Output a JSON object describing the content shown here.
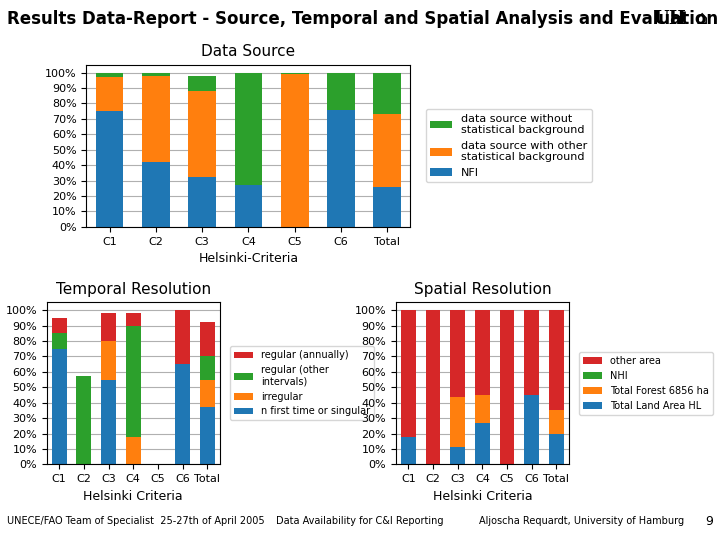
{
  "title": "Results Data-Report - Source, Temporal and Spatial Analysis and Evaluation",
  "annotations": [
    "UH",
    "⌂",
    "UNECE/FAO Team of Specialist  25-27th of April 2005",
    "Data Availability for C&I Reporting",
    "Aljoscha Requardt, University of Hamburg",
    "9"
  ],
  "chart_data": [
    {
      "type": "bar",
      "stacked": true,
      "title": "Data Source",
      "xlabel": "Helsinki-Criteria",
      "categories": [
        "C1",
        "C2",
        "C3",
        "C4",
        "C5",
        "C6",
        "Total"
      ],
      "series": [
        {
          "name": "NFI",
          "values": [
            75,
            42,
            32,
            27,
            0,
            76,
            26
          ]
        },
        {
          "name": "data source with other\nstatistical background",
          "values": [
            22,
            56,
            56,
            0,
            99,
            0,
            47
          ]
        },
        {
          "name": "data source without\nstatistical background",
          "values": [
            3,
            2,
            10,
            73,
            1,
            24,
            27
          ]
        }
      ],
      "ylim": [
        0,
        105
      ],
      "yticks": [
        {
          "value": 0,
          "label": "0%"
        },
        {
          "value": 10,
          "label": "10%"
        },
        {
          "value": 20,
          "label": "20%"
        },
        {
          "value": 30,
          "label": "30%"
        },
        {
          "value": 40,
          "label": "40%"
        },
        {
          "value": 50,
          "label": "50%"
        },
        {
          "value": 60,
          "label": "60%"
        },
        {
          "value": 70,
          "label": "70%"
        },
        {
          "value": 80,
          "label": "80%"
        },
        {
          "value": 90,
          "label": "90%"
        },
        {
          "value": 100,
          "label": "100%"
        }
      ],
      "grid": true,
      "legend": "center left"
    },
    {
      "type": "bar",
      "stacked": true,
      "title": "Temporal Resolution",
      "xlabel": "Helsinki Criteria",
      "categories": [
        "C1",
        "C2",
        "C3",
        "C4",
        "C5",
        "C6",
        "Total"
      ],
      "series": [
        {
          "name": "n first time or singular",
          "values": [
            75,
            0,
            55,
            0,
            0,
            65,
            37
          ]
        },
        {
          "name": "irregular",
          "values": [
            0,
            0,
            25,
            18,
            0,
            0,
            18
          ]
        },
        {
          "name": "regular (other\nintervals)",
          "values": [
            10,
            57,
            0,
            72,
            0,
            0,
            15
          ]
        },
        {
          "name": "regular (annually)",
          "values": [
            10,
            0,
            18,
            8,
            0,
            35,
            22
          ]
        }
      ],
      "ylim": [
        0,
        105
      ],
      "yticks": [
        {
          "value": 0,
          "label": "0%"
        },
        {
          "value": 10,
          "label": "10%"
        },
        {
          "value": 20,
          "label": "20%"
        },
        {
          "value": 30,
          "label": "30%"
        },
        {
          "value": 40,
          "label": "40%"
        },
        {
          "value": 50,
          "label": "50%"
        },
        {
          "value": 60,
          "label": "60%"
        },
        {
          "value": 70,
          "label": "70%"
        },
        {
          "value": 80,
          "label": "80%"
        },
        {
          "value": 90,
          "label": "90%"
        },
        {
          "value": 100,
          "label": "100%"
        }
      ],
      "grid": true,
      "legend": "center left"
    },
    {
      "type": "bar",
      "stacked": true,
      "title": "Spatial Resolution",
      "xlabel": "Helsinki Criteria",
      "categories": [
        "C1",
        "C2",
        "C3",
        "C4",
        "C5",
        "C6",
        "Total"
      ],
      "series": [
        {
          "name": "Total Land Area HL",
          "values": [
            18,
            0,
            11,
            27,
            0,
            45,
            20
          ]
        },
        {
          "name": "Total Forest 6856 ha",
          "values": [
            0,
            0,
            33,
            18,
            0,
            0,
            15
          ]
        },
        {
          "name": "NHI",
          "values": [
            0,
            0,
            0,
            0,
            0,
            0,
            0
          ]
        },
        {
          "name": "other area",
          "values": [
            82,
            100,
            56,
            55,
            100,
            55,
            65
          ]
        }
      ],
      "ylim": [
        0,
        105
      ],
      "yticks": [
        {
          "value": 0,
          "label": "0%"
        },
        {
          "value": 10,
          "label": "10%"
        },
        {
          "value": 20,
          "label": "20%"
        },
        {
          "value": 30,
          "label": "30%"
        },
        {
          "value": 40,
          "label": "40%"
        },
        {
          "value": 50,
          "label": "50%"
        },
        {
          "value": 60,
          "label": "60%"
        },
        {
          "value": 70,
          "label": "70%"
        },
        {
          "value": 80,
          "label": "80%"
        },
        {
          "value": 90,
          "label": "90%"
        },
        {
          "value": 100,
          "label": "100%"
        }
      ],
      "grid": true,
      "legend": "center left"
    }
  ]
}
